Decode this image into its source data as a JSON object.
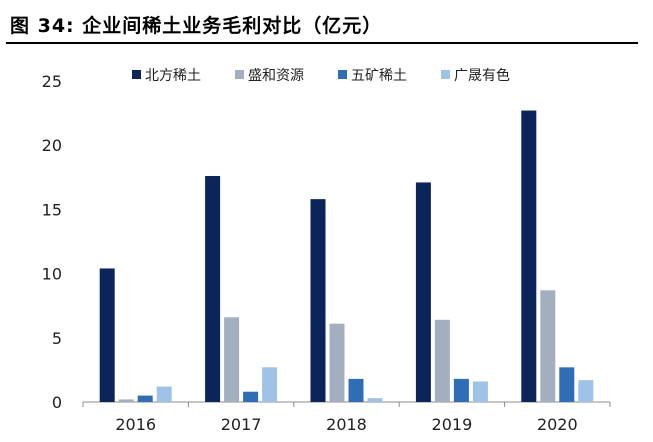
{
  "figure": {
    "title": "图 34:  企业间稀土业务毛利对比（亿元）"
  },
  "chart_data": {
    "type": "bar",
    "title": "图 34:  企业间稀土业务毛利对比（亿元）",
    "xlabel": "",
    "ylabel": "",
    "categories": [
      "2016",
      "2017",
      "2018",
      "2019",
      "2020"
    ],
    "series": [
      {
        "name": "北方稀土",
        "color": "#0b2459",
        "values": [
          10.4,
          17.6,
          15.8,
          17.1,
          22.7
        ]
      },
      {
        "name": "盛和资源",
        "color": "#a3afbe",
        "values": [
          0.2,
          6.6,
          6.1,
          6.4,
          8.7
        ]
      },
      {
        "name": "五矿稀土",
        "color": "#2f6db5",
        "values": [
          0.5,
          0.8,
          1.8,
          1.8,
          2.7
        ]
      },
      {
        "name": "广晟有色",
        "color": "#9ec3e7",
        "values": [
          1.2,
          2.7,
          0.3,
          1.6,
          1.7
        ]
      }
    ],
    "ylim": [
      0,
      25
    ],
    "yticks": [
      "0",
      "5",
      "10",
      "15",
      "20",
      "25"
    ],
    "grid": false,
    "legend_position": "top"
  }
}
